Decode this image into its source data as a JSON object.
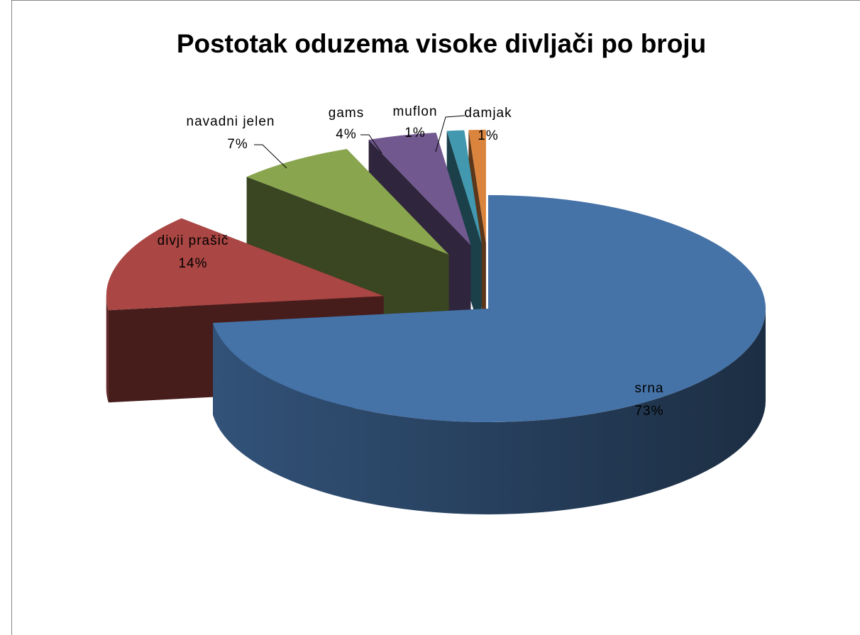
{
  "chart_data": {
    "type": "pie",
    "title": "Postotak oduzema visoke divljači po broju",
    "categories": [
      "srna",
      "divji prašič",
      "navadni jelen",
      "gams",
      "muflon",
      "damjak"
    ],
    "values": [
      73,
      14,
      7,
      4,
      1,
      1
    ],
    "value_labels": [
      "73%",
      "14%",
      "7%",
      "4%",
      "1%",
      "1%"
    ],
    "colors": [
      "#4572a7",
      "#aa4643",
      "#89a54e",
      "#71588f",
      "#4198af",
      "#db843d"
    ]
  }
}
